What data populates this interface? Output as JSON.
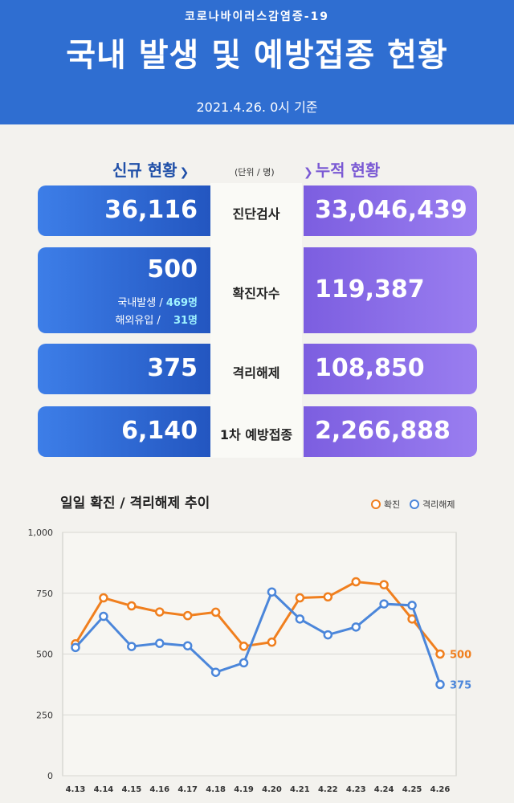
{
  "header": {
    "subtitle": "코로나바이러스감염증-19",
    "title": "국내 발생 및 예방접종 현황",
    "date": "2021.4.26. 0시 기준"
  },
  "stats": {
    "new_heading": "신규 현황",
    "cum_heading": "누적 현황",
    "unit": "(단위 / 명)",
    "rows": [
      {
        "label": "진단검사",
        "new": "36,116",
        "cum": "33,046,439"
      },
      {
        "label": "확진자수",
        "new": "500",
        "cum": "119,387"
      },
      {
        "label": "격리해제",
        "new": "375",
        "cum": "108,850"
      },
      {
        "label": "1차 예방접종",
        "new": "6,140",
        "cum": "2,266,888"
      }
    ],
    "confirmed_breakdown": {
      "domestic_label": "국내발생 /",
      "domestic_value": "469명",
      "overseas_label": "해외유입 /",
      "overseas_value": "31명"
    }
  },
  "chart_data": {
    "type": "line",
    "title": "일일 확진 / 격리해제 추이",
    "categories": [
      "4.13",
      "4.14",
      "4.15",
      "4.16",
      "4.17",
      "4.18",
      "4.19",
      "4.20",
      "4.21",
      "4.22",
      "4.23",
      "4.24",
      "4.25",
      "4.26"
    ],
    "ylim": [
      0,
      1000
    ],
    "yticks": [
      0,
      250,
      500,
      750,
      1000
    ],
    "ytick_labels": [
      "0",
      "250",
      "500",
      "750",
      "1,000"
    ],
    "grid": true,
    "legend_position": "top-right",
    "series": [
      {
        "name": "확진",
        "color": "#f07f1e",
        "values": [
          542,
          731,
          698,
          673,
          658,
          672,
          532,
          549,
          731,
          735,
          797,
          785,
          644,
          500
        ],
        "end_label": "500"
      },
      {
        "name": "격리해제",
        "color": "#4b86da",
        "values": [
          527,
          655,
          531,
          544,
          534,
          425,
          464,
          755,
          644,
          579,
          611,
          706,
          700,
          375
        ],
        "end_label": "375"
      }
    ]
  }
}
